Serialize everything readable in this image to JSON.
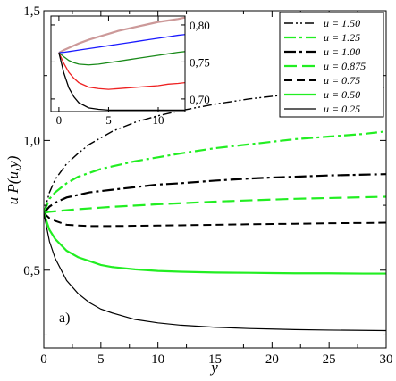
{
  "chart_data": [
    {
      "type": "line",
      "panel_label": "a)",
      "xlabel": "y",
      "ylabel": "u P(u,y)",
      "xlim": [
        0,
        30
      ],
      "ylim": [
        0.2,
        1.5
      ],
      "x_ticks": [
        0,
        5,
        10,
        15,
        20,
        25,
        30
      ],
      "x_tick_labels": [
        "0",
        "5",
        "10",
        "15",
        "20",
        "25",
        "30"
      ],
      "y_ticks": [
        0.5,
        1.0,
        1.5
      ],
      "y_tick_labels": [
        "0,5",
        "1,0",
        "1,5"
      ],
      "legend_position": "top-right",
      "x": [
        0,
        0.5,
        1,
        2,
        3,
        4,
        5,
        6,
        8,
        10,
        12,
        15,
        18,
        20,
        22,
        25,
        28,
        30
      ],
      "series": [
        {
          "name": "u = 1.50",
          "color": "#000000",
          "dash": "dashdotdot",
          "width": 1.4,
          "values": [
            0.72,
            0.8,
            0.85,
            0.91,
            0.95,
            0.985,
            1.01,
            1.035,
            1.07,
            1.095,
            1.115,
            1.14,
            1.16,
            1.17,
            1.18,
            1.19,
            1.2,
            1.205
          ]
        },
        {
          "name": "u = 1.25",
          "color": "#22ee22",
          "dash": "dashdot",
          "width": 2.2,
          "values": [
            0.72,
            0.775,
            0.8,
            0.835,
            0.86,
            0.875,
            0.89,
            0.9,
            0.92,
            0.935,
            0.95,
            0.97,
            0.985,
            0.995,
            1.005,
            1.015,
            1.025,
            1.035
          ]
        },
        {
          "name": "u = 1.00",
          "color": "#000000",
          "dash": "dashdot",
          "width": 2.2,
          "values": [
            0.72,
            0.745,
            0.76,
            0.78,
            0.79,
            0.8,
            0.805,
            0.81,
            0.82,
            0.83,
            0.835,
            0.845,
            0.853,
            0.857,
            0.86,
            0.865,
            0.868,
            0.87
          ]
        },
        {
          "name": "u = 0.875",
          "color": "#22ee22",
          "dash": "longdash",
          "width": 2.2,
          "values": [
            0.72,
            0.725,
            0.727,
            0.731,
            0.735,
            0.738,
            0.741,
            0.744,
            0.749,
            0.754,
            0.758,
            0.764,
            0.769,
            0.772,
            0.775,
            0.778,
            0.781,
            0.783
          ]
        },
        {
          "name": "u = 0.75",
          "color": "#000000",
          "dash": "dash",
          "width": 2.0,
          "values": [
            0.72,
            0.7,
            0.69,
            0.675,
            0.672,
            0.67,
            0.67,
            0.67,
            0.671,
            0.672,
            0.673,
            0.675,
            0.677,
            0.678,
            0.679,
            0.681,
            0.682,
            0.683
          ]
        },
        {
          "name": "u = 0.50",
          "color": "#22ee22",
          "dash": "solid",
          "width": 2.2,
          "values": [
            0.72,
            0.655,
            0.62,
            0.575,
            0.55,
            0.535,
            0.52,
            0.512,
            0.503,
            0.497,
            0.494,
            0.491,
            0.49,
            0.489,
            0.488,
            0.488,
            0.487,
            0.487
          ]
        },
        {
          "name": "u = 0.25",
          "color": "#000000",
          "dash": "solid",
          "width": 1.2,
          "values": [
            0.72,
            0.61,
            0.545,
            0.46,
            0.41,
            0.375,
            0.35,
            0.335,
            0.31,
            0.297,
            0.288,
            0.28,
            0.275,
            0.273,
            0.271,
            0.269,
            0.268,
            0.267
          ]
        }
      ]
    },
    {
      "type": "line",
      "role": "inset",
      "xlabel": "",
      "ylabel": "",
      "xlim": [
        -0.8,
        12.7
      ],
      "ylim": [
        0.683,
        0.812
      ],
      "x_ticks": [
        0,
        5,
        10
      ],
      "x_tick_labels": [
        "0",
        "5",
        "10"
      ],
      "y_ticks": [
        0.7,
        0.75,
        0.8
      ],
      "y_tick_labels": [
        "0,70",
        "0,75",
        "0,80"
      ],
      "y_tick_side": "right",
      "x": [
        0,
        0.5,
        1,
        1.5,
        2,
        3,
        4,
        5,
        6,
        7,
        8,
        9,
        10,
        11,
        12,
        12.7
      ],
      "series": [
        {
          "color": "#cc9999",
          "width": 2.2,
          "values": [
            0.7625,
            0.766,
            0.769,
            0.772,
            0.775,
            0.78,
            0.784,
            0.788,
            0.792,
            0.795,
            0.798,
            0.801,
            0.804,
            0.806,
            0.808,
            0.81
          ]
        },
        {
          "color": "#1a1aff",
          "width": 1.3,
          "values": [
            0.7625,
            0.763,
            0.764,
            0.765,
            0.766,
            0.768,
            0.77,
            0.772,
            0.774,
            0.776,
            0.778,
            0.78,
            0.782,
            0.784,
            0.786,
            0.787
          ]
        },
        {
          "color": "#1a8a1a",
          "width": 1.3,
          "values": [
            0.7625,
            0.757,
            0.752,
            0.749,
            0.747,
            0.746,
            0.747,
            0.749,
            0.751,
            0.753,
            0.755,
            0.757,
            0.759,
            0.761,
            0.763,
            0.764
          ]
        },
        {
          "color": "#ee2222",
          "width": 1.3,
          "values": [
            0.7625,
            0.748,
            0.736,
            0.728,
            0.722,
            0.716,
            0.714,
            0.713,
            0.714,
            0.715,
            0.716,
            0.717,
            0.718,
            0.72,
            0.721,
            0.722
          ]
        },
        {
          "color": "#000000",
          "width": 1.3,
          "values": [
            0.7625,
            0.735,
            0.715,
            0.703,
            0.695,
            0.688,
            0.686,
            0.685,
            0.685,
            0.685,
            0.685,
            0.685,
            0.685,
            0.685,
            0.685,
            0.685
          ]
        }
      ]
    }
  ]
}
